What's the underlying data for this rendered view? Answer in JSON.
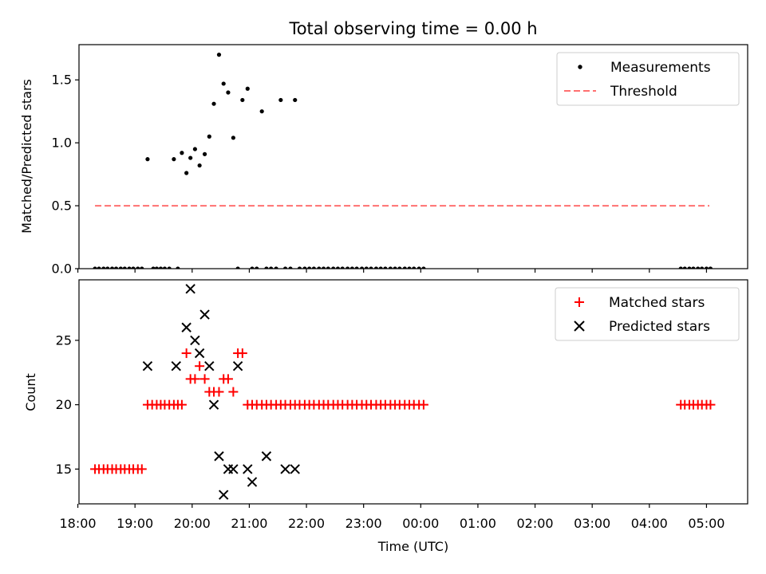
{
  "figure": {
    "title": "Total observing time = 0.00 h"
  },
  "chart_data": [
    {
      "type": "scatter",
      "ylabel": "Matched/Predicted stars",
      "xlim": [
        18.02,
        29.72
      ],
      "ylim": [
        0,
        1.78
      ],
      "yticks": [
        0.0,
        0.5,
        1.0,
        1.5
      ],
      "ytick_labels": [
        "0.0",
        "0.5",
        "1.0",
        "1.5"
      ],
      "legend_position": "top-right",
      "legend": [
        "Measurements",
        "Threshold"
      ],
      "series": [
        {
          "name": "Measurements",
          "marker": "dot",
          "color": "#000000",
          "x": [
            18.3,
            18.37,
            18.45,
            18.52,
            18.6,
            18.67,
            18.75,
            18.82,
            18.9,
            18.97,
            19.05,
            19.12,
            19.22,
            19.32,
            19.38,
            19.45,
            19.52,
            19.6,
            19.68,
            19.75,
            19.82,
            19.9,
            19.97,
            20.05,
            20.13,
            20.22,
            20.3,
            20.38,
            20.47,
            20.55,
            20.63,
            20.72,
            20.8,
            20.88,
            20.97,
            21.05,
            21.13,
            21.22,
            21.3,
            21.38,
            21.47,
            21.55,
            21.63,
            21.72,
            21.8,
            21.88,
            21.97,
            22.05,
            22.13,
            22.22,
            22.3,
            22.38,
            22.47,
            22.55,
            22.63,
            22.72,
            22.8,
            22.88,
            22.97,
            23.05,
            23.13,
            23.22,
            23.3,
            23.38,
            23.47,
            23.55,
            23.63,
            23.72,
            23.8,
            23.88,
            23.97,
            24.05,
            28.55,
            28.62,
            28.7,
            28.77,
            28.85,
            28.92,
            29.0,
            29.07
          ],
          "y": [
            0,
            0,
            0,
            0,
            0,
            0,
            0,
            0,
            0,
            0,
            0,
            0,
            0.87,
            0,
            0,
            0,
            0,
            0,
            0.87,
            0,
            0.92,
            0.76,
            0.88,
            0.95,
            0.82,
            0.91,
            1.05,
            1.31,
            1.7,
            1.47,
            1.4,
            1.04,
            0,
            1.34,
            1.43,
            0,
            0,
            1.25,
            0,
            0,
            0,
            1.34,
            0,
            0,
            1.34,
            0,
            0,
            0,
            0,
            0,
            0,
            0,
            0,
            0,
            0,
            0,
            0,
            0,
            0,
            0,
            0,
            0,
            0,
            0,
            0,
            0,
            0,
            0,
            0,
            0,
            0,
            0,
            0,
            0,
            0,
            0,
            0,
            0,
            0,
            0
          ]
        },
        {
          "name": "Threshold",
          "style": "dashed",
          "color": "#ff7070",
          "x": [
            18.3,
            29.05
          ],
          "y": [
            0.5,
            0.5
          ]
        }
      ]
    },
    {
      "type": "scatter",
      "xlabel": "Time (UTC)",
      "ylabel": "Count",
      "xlim": [
        18.02,
        29.72
      ],
      "ylim": [
        12.3,
        29.7
      ],
      "yticks": [
        15,
        20,
        25
      ],
      "ytick_labels": [
        "15",
        "20",
        "25"
      ],
      "xticks": [
        18,
        19,
        20,
        21,
        22,
        23,
        24,
        25,
        26,
        27,
        28,
        29
      ],
      "xtick_labels": [
        "18:00",
        "19:00",
        "20:00",
        "21:00",
        "22:00",
        "23:00",
        "00:00",
        "01:00",
        "02:00",
        "03:00",
        "04:00",
        "05:00"
      ],
      "legend_position": "top-right",
      "legend": [
        "Matched stars",
        "Predicted stars"
      ],
      "series": [
        {
          "name": "Matched stars",
          "marker": "plus",
          "color": "#ff0000",
          "x": [
            18.3,
            18.37,
            18.45,
            18.52,
            18.6,
            18.67,
            18.75,
            18.82,
            18.9,
            18.97,
            19.05,
            19.12,
            19.22,
            19.3,
            19.38,
            19.45,
            19.52,
            19.6,
            19.68,
            19.75,
            19.82,
            19.9,
            19.97,
            20.05,
            20.13,
            20.22,
            20.3,
            20.38,
            20.47,
            20.55,
            20.63,
            20.72,
            20.8,
            20.88,
            20.97,
            21.05,
            21.13,
            21.22,
            21.3,
            21.38,
            21.47,
            21.55,
            21.63,
            21.72,
            21.8,
            21.88,
            21.97,
            22.05,
            22.13,
            22.22,
            22.3,
            22.38,
            22.47,
            22.55,
            22.63,
            22.72,
            22.8,
            22.88,
            22.97,
            23.05,
            23.13,
            23.22,
            23.3,
            23.38,
            23.47,
            23.55,
            23.63,
            23.72,
            23.8,
            23.88,
            23.97,
            24.05,
            28.55,
            28.62,
            28.7,
            28.77,
            28.85,
            28.92,
            29.0,
            29.07
          ],
          "y": [
            15,
            15,
            15,
            15,
            15,
            15,
            15,
            15,
            15,
            15,
            15,
            15,
            20,
            20,
            20,
            20,
            20,
            20,
            20,
            20,
            20,
            24,
            22,
            22,
            23,
            22,
            21,
            21,
            21,
            22,
            22,
            21,
            24,
            24,
            20,
            20,
            20,
            20,
            20,
            20,
            20,
            20,
            20,
            20,
            20,
            20,
            20,
            20,
            20,
            20,
            20,
            20,
            20,
            20,
            20,
            20,
            20,
            20,
            20,
            20,
            20,
            20,
            20,
            20,
            20,
            20,
            20,
            20,
            20,
            20,
            20,
            20,
            20,
            20,
            20,
            20,
            20,
            20,
            20,
            20
          ]
        },
        {
          "name": "Predicted stars",
          "marker": "x",
          "color": "#000000",
          "x": [
            19.22,
            19.72,
            19.9,
            19.97,
            20.05,
            20.13,
            20.22,
            20.3,
            20.38,
            20.47,
            20.55,
            20.63,
            20.72,
            20.8,
            20.97,
            21.05,
            21.3,
            21.63,
            21.8
          ],
          "y": [
            23,
            23,
            26,
            29,
            25,
            24,
            27,
            23,
            20,
            16,
            13,
            15,
            15,
            23,
            15,
            14,
            16,
            15,
            15
          ]
        }
      ]
    }
  ]
}
